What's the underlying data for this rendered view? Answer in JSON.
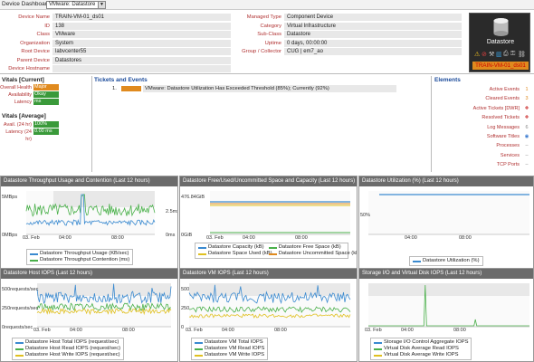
{
  "dashboard": {
    "label": "Device Dashboard:",
    "selected": "VMware: Datastore"
  },
  "device": {
    "left": [
      {
        "k": "Device Name",
        "v": "TRAIN-VM-01_ds01"
      },
      {
        "k": "ID",
        "v": "138"
      },
      {
        "k": "Class",
        "v": "VMware"
      },
      {
        "k": "Organization",
        "v": "System"
      },
      {
        "k": "Root Device",
        "v": "labvcenter55"
      },
      {
        "k": "Parent Device",
        "v": "Datastores"
      },
      {
        "k": "Device Hostname",
        "v": ""
      }
    ],
    "right": [
      {
        "k": "Managed Type",
        "v": "Component Device"
      },
      {
        "k": "Category",
        "v": "Virtual Infrastructure"
      },
      {
        "k": "Sub-Class",
        "v": "Datastore"
      },
      {
        "k": "Uptime",
        "v": "0 days, 00:00:00"
      },
      {
        "k": "Group / Collector",
        "v": "CUG | em7_ao"
      }
    ],
    "badge_title": "Datastore",
    "badge_name": "TRAIN-VM-01_ds01"
  },
  "vitals_current": {
    "title": "Vitals [Current]",
    "rows": [
      {
        "k": "Overall Health",
        "v": "Major",
        "color": "#e08a1e"
      },
      {
        "k": "Availability",
        "v": "Okay",
        "color": "#3a9a3a"
      },
      {
        "k": "Latency",
        "v": "ms",
        "color": "#3a9a3a"
      }
    ]
  },
  "vitals_average": {
    "title": "Vitals [Average]",
    "rows": [
      {
        "k": "Avail. (24 hr)",
        "v": "100%",
        "color": "#3a9a3a"
      },
      {
        "k": "Latency (24 hr)",
        "v": "0.00 ms",
        "color": "#3a9a3a"
      }
    ]
  },
  "tickets": {
    "title": "Tickets and Events",
    "items": [
      {
        "num": "1.",
        "severity_color": "#e08a1e",
        "text": "VMware: Datastore Utilization Has Exceeded Threshold (85%); Currently (92%)"
      }
    ]
  },
  "elements": {
    "title": "Elements",
    "items": [
      {
        "label": "Active Events",
        "icon": "1",
        "icon_color": "#e08a1e",
        "icon_name": "active-events-icon"
      },
      {
        "label": "Cleared Events",
        "icon": "3",
        "icon_color": "#e08a1e",
        "icon_name": "cleared-events-icon"
      },
      {
        "label": "Active Tickets [DWR]",
        "icon": "✚",
        "icon_color": "#d04040",
        "icon_name": "active-tickets-icon"
      },
      {
        "label": "Resolved Tickets",
        "icon": "✚",
        "icon_color": "#d04040",
        "icon_name": "resolved-tickets-icon"
      },
      {
        "label": "Log Messages",
        "icon": "6",
        "icon_color": "#888888",
        "icon_name": "log-messages-icon"
      },
      {
        "label": "Software Titles",
        "icon": "◉",
        "icon_color": "#3a7ad0",
        "icon_name": "software-titles-icon"
      },
      {
        "label": "Processes",
        "icon": "–",
        "icon_color": "#888888",
        "icon_name": "processes-icon"
      },
      {
        "label": "Services",
        "icon": "–",
        "icon_color": "#888888",
        "icon_name": "services-icon"
      },
      {
        "label": "TCP Ports",
        "icon": "–",
        "icon_color": "#888888",
        "icon_name": "tcp-ports-icon"
      }
    ]
  },
  "panels": [
    {
      "title": "Datastore Throughput Usage and Contention (Last 12 hours)",
      "ylabels_left": [
        "5MBps",
        "0MBps"
      ],
      "ylabels_right": [
        "2.5ms",
        "0ms"
      ],
      "xlabels": [
        "03. Feb",
        "04:00",
        "08:00"
      ],
      "legend": [
        {
          "name": "Datastore Throughput Usage (KB/sec)",
          "color": "#3a8ad0"
        },
        {
          "name": "Datastore Throughput Contention (ms)",
          "color": "#4ab04a"
        }
      ]
    },
    {
      "title": "Datastore Free/Used/Uncommitted Space and Capacity (Last 12 hours)",
      "ylabels_left": [
        "476.84GiB",
        "0GiB"
      ],
      "xlabels": [
        "03. Feb",
        "04:00",
        "08:00"
      ],
      "legend": [
        {
          "name": "Datastore Capacity (kB)",
          "color": "#3a8ad0"
        },
        {
          "name": "Datastore Free Space (kB)",
          "color": "#4ab04a"
        },
        {
          "name": "Datastore Space Used (kB)",
          "color": "#e0c020"
        },
        {
          "name": "Datastore Uncommitted Space (kB)",
          "color": "#e08a1e"
        }
      ]
    },
    {
      "title": "Datastore Utilization (%) (Last 12 hours)",
      "ylabels_left": [
        "50%"
      ],
      "xlabels": [
        "04:00",
        "08:00"
      ],
      "legend": [
        {
          "name": "Datastore Utilization (%)",
          "color": "#3a8ad0"
        }
      ]
    },
    {
      "title": "Datastore Host IOPS (Last 12 hours)",
      "ylabels_left": [
        "500requests/sec",
        "250requests/sec",
        "0requests/sec"
      ],
      "xlabels": [
        "03. Feb",
        "04:00",
        "08:00"
      ],
      "legend": [
        {
          "name": "Datastore Host Total IOPS (request/sec)",
          "color": "#3a8ad0"
        },
        {
          "name": "Datastore Host Read IOPS (request/sec)",
          "color": "#4ab04a"
        },
        {
          "name": "Datastore Host Write IOPS (request/sec)",
          "color": "#e0c020"
        }
      ]
    },
    {
      "title": "Datastore VM IOPS (Last 12 hours)",
      "ylabels_left": [
        "500",
        "250",
        "0"
      ],
      "xlabels": [
        "03. Feb",
        "04:00",
        "08:00"
      ],
      "legend": [
        {
          "name": "Datastore VM Total IOPS",
          "color": "#3a8ad0"
        },
        {
          "name": "Datastore VM Read IOPS",
          "color": "#4ab04a"
        },
        {
          "name": "Datastore VM Write IOPS",
          "color": "#e0c020"
        }
      ]
    },
    {
      "title": "Storage I/O and Virtual Disk IOPS (Last 12 hours)",
      "ylabels_left": [],
      "xlabels": [
        "03. Feb",
        "04:00",
        "08:00"
      ],
      "legend": [
        {
          "name": "Storage I/O Control Aggregate IOPS",
          "color": "#3a8ad0"
        },
        {
          "name": "Virtual Disk Average Read IOPS",
          "color": "#4ab04a"
        },
        {
          "name": "Virtual Disk Average Write IOPS",
          "color": "#e0c020"
        }
      ]
    }
  ]
}
